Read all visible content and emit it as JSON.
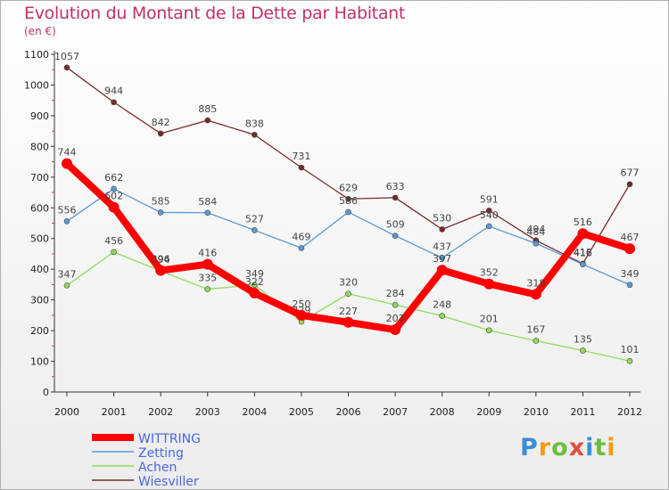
{
  "title": "Evolution du Montant de la Dette par Habitant",
  "subtitle": "(en €)",
  "logo": {
    "text": "Proxiti",
    "colors": [
      "#3a8fd6",
      "#f39c12",
      "#6abf3c",
      "#e74c3c",
      "#3a8fd6",
      "#6abf3c",
      "#f39c12"
    ]
  },
  "colors": {
    "axis": "#333333",
    "grid": "#f0c0c0",
    "title": "#c0306a",
    "legend_text": "#4a66e0"
  },
  "chart_data": {
    "type": "line",
    "title": "Evolution du Montant de la Dette par Habitant",
    "subtitle": "(en €)",
    "xlabel": "",
    "ylabel": "",
    "ylim": [
      0,
      1100
    ],
    "yticks": [
      0,
      100,
      200,
      300,
      400,
      500,
      600,
      700,
      800,
      900,
      1000,
      1100
    ],
    "x": [
      "2000",
      "2001",
      "2002",
      "2003",
      "2004",
      "2005",
      "2006",
      "2007",
      "2008",
      "2009",
      "2010",
      "2011",
      "2012"
    ],
    "legend_position": "bottom-left",
    "series": [
      {
        "name": "Wiesviller",
        "color": "#7a2a2a",
        "values": [
          1057,
          944,
          842,
          885,
          838,
          731,
          629,
          633,
          530,
          591,
          494,
          418,
          677
        ]
      },
      {
        "name": "Achen",
        "color": "#8fdc5a",
        "values": [
          347,
          456,
          394,
          335,
          349,
          229,
          320,
          284,
          248,
          201,
          167,
          135,
          101
        ]
      },
      {
        "name": "Zetting",
        "color": "#5a9ad6",
        "values": [
          556,
          662,
          585,
          584,
          527,
          469,
          586,
          509,
          437,
          540,
          484,
          416,
          349
        ]
      },
      {
        "name": "WITTRING",
        "color": "#ff0000",
        "values": [
          744,
          602,
          396,
          416,
          322,
          250,
          227,
          203,
          397,
          352,
          318,
          516,
          467
        ]
      }
    ],
    "legend_order": [
      "WITTRING",
      "Zetting",
      "Achen",
      "Wiesviller"
    ]
  }
}
